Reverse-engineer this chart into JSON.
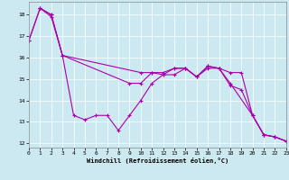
{
  "xlabel": "Windchill (Refroidissement éolien,°C)",
  "background_color": "#cce8f0",
  "line_color": "#aa00aa",
  "xlim": [
    0,
    23
  ],
  "ylim": [
    11.8,
    18.6
  ],
  "yticks": [
    12,
    13,
    14,
    15,
    16,
    17,
    18
  ],
  "xticks": [
    0,
    1,
    2,
    3,
    4,
    5,
    6,
    7,
    8,
    9,
    10,
    11,
    12,
    13,
    14,
    15,
    16,
    17,
    18,
    19,
    20,
    21,
    22,
    23
  ],
  "series1_x": [
    0,
    1,
    2,
    3,
    4,
    5,
    6,
    7,
    8,
    9,
    10,
    11,
    12,
    13,
    14,
    15,
    16,
    17,
    18,
    19,
    20,
    21,
    22,
    23
  ],
  "series1_y": [
    16.8,
    18.3,
    18.0,
    16.1,
    13.3,
    13.1,
    13.3,
    13.3,
    12.6,
    13.3,
    14.0,
    14.8,
    15.2,
    15.2,
    15.5,
    15.1,
    15.5,
    15.5,
    14.7,
    14.5,
    13.3,
    12.4,
    12.3,
    12.1
  ],
  "series2_x": [
    1,
    2,
    3,
    10,
    11,
    12,
    13,
    14,
    15,
    16,
    17,
    18,
    20,
    21,
    22,
    23
  ],
  "series2_y": [
    18.3,
    17.9,
    16.1,
    15.3,
    15.3,
    15.3,
    15.5,
    15.5,
    15.1,
    15.6,
    15.5,
    14.8,
    13.3,
    12.4,
    12.3,
    12.1
  ],
  "series3_x": [
    0,
    1,
    2,
    3,
    9,
    10,
    11,
    12,
    13,
    14,
    15,
    16,
    17,
    18,
    19,
    20,
    21,
    22,
    23
  ],
  "series3_y": [
    16.8,
    18.3,
    18.0,
    16.1,
    14.8,
    14.8,
    15.3,
    15.2,
    15.5,
    15.5,
    15.1,
    15.6,
    15.5,
    15.3,
    15.3,
    13.3,
    12.4,
    12.3,
    12.1
  ]
}
